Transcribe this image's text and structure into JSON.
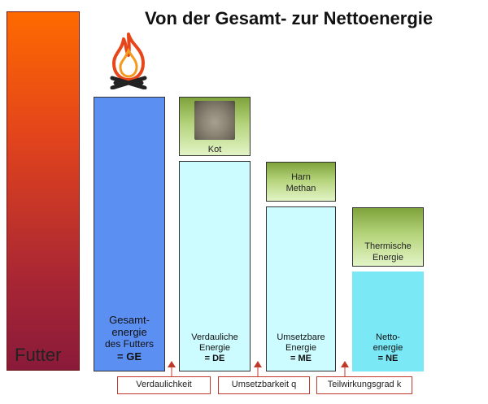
{
  "title": "Von der Gesamt- zur Nettoenergie",
  "futter": {
    "label": "Futter"
  },
  "bars": {
    "ge": {
      "line1": "Gesamt-",
      "line2": "energie",
      "line3": "des Futters",
      "line4": "= GE"
    },
    "de": {
      "line1": "Verdauliche",
      "line2": "Energie",
      "line3": "= DE"
    },
    "me": {
      "line1": "Umsetzbare",
      "line2": "Energie",
      "line3": "= ME"
    },
    "ne": {
      "line1": "Netto-",
      "line2": "energie",
      "line3": "= NE"
    }
  },
  "losses": {
    "kot": "Kot",
    "harn_line1": "Harn",
    "harn_line2": "Methan",
    "therm_line1": "Thermische",
    "therm_line2": "Energie"
  },
  "steps": {
    "verdaulichkeit": "Verdaulichkeit",
    "umsetzbarkeit": "Umsetzbarkeit q",
    "teilwirkungsgrad": "Teilwirkungsgrad k"
  },
  "colors": {
    "futter_top": "#ff6a00",
    "futter_bottom": "#8a1a3a",
    "ge": "#5b8ff2",
    "de_me": "#ccfcff",
    "ne": "#7ae8f5",
    "loss_top": "#7fa33c",
    "loss_bottom": "#e2f4c6",
    "step_border": "#c0392b"
  },
  "icons": {
    "fire": "fire-icon",
    "feces_photo": "feces-photo"
  }
}
